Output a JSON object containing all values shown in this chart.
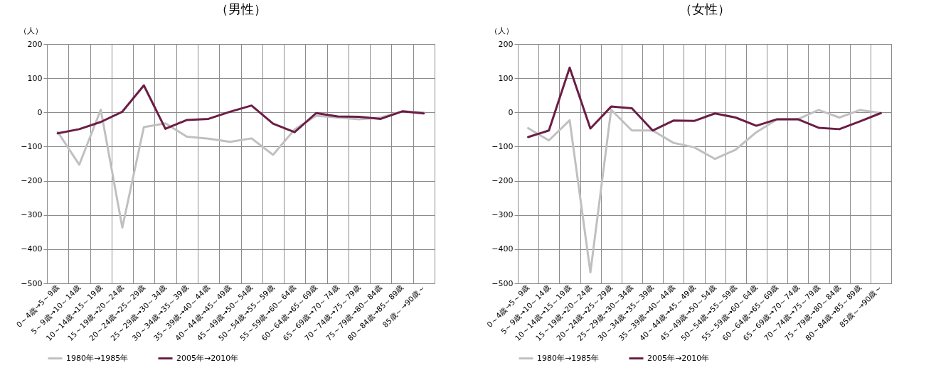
{
  "chart_data": [
    {
      "type": "line",
      "title": "（男性）",
      "ylabel": "（人）",
      "categories": [
        "0～4歳→5～9歳",
        "5～9歳→10～14歳",
        "10～14歳→15～19歳",
        "15～19歳→20～24歳",
        "20～24歳→25～29歳",
        "25～29歳→30～34歳",
        "30～34歳→35～39歳",
        "35～39歳→40～44歳",
        "40～44歳→45～49歳",
        "45～49歳→50～54歳",
        "50～54歳→55～59歳",
        "55～59歳→60～64歳",
        "60～64歳→65～69歳",
        "65～69歳→70～74歳",
        "70～74歳→75～79歳",
        "75～79歳→80～84歳",
        "80～84歳→85～89歳",
        "85歳～→90歳～"
      ],
      "series": [
        {
          "name": "1980年→1985年",
          "color": "#c0c0c0",
          "values": [
            -57,
            -153,
            8,
            -337,
            -43,
            -32,
            -71,
            -77,
            -86,
            -76,
            -124,
            -50,
            -10,
            -15,
            -20,
            -15,
            3,
            0
          ]
        },
        {
          "name": "2005年→2010年",
          "color": "#6b1d45",
          "values": [
            -61,
            -49,
            -28,
            2,
            79,
            -48,
            -22,
            -19,
            2,
            20,
            -33,
            -58,
            -2,
            -12,
            -13,
            -19,
            3,
            -3
          ]
        }
      ],
      "ylim": [
        -500,
        200
      ],
      "yticks": [
        -500,
        -400,
        -300,
        -200,
        -100,
        0,
        100,
        200
      ],
      "grid": true,
      "legend": "bottom"
    },
    {
      "type": "line",
      "title": "（女性）",
      "ylabel": "（人）",
      "categories": [
        "0～4歳→5～9歳",
        "5～9歳→10～14歳",
        "10～14歳→15～19歳",
        "15～19歳→20～24歳",
        "20～24歳→25～29歳",
        "25～29歳→30～34歳",
        "30～34歳→35～39歳",
        "35～39歳→40～44歳",
        "40～44歳→45～49歳",
        "45～49歳→50～54歳",
        "50～54歳→55～59歳",
        "55～59歳→60～64歳",
        "60～64歳→65～69歳",
        "65～69歳→70～74歳",
        "70～74歳→75～79歳",
        "75～79歳→80～84歳",
        "80～84歳→85～89歳",
        "85歳～→90歳～"
      ],
      "series": [
        {
          "name": "1980年→1985年",
          "color": "#c0c0c0",
          "values": [
            -46,
            -82,
            -23,
            -468,
            8,
            -53,
            -53,
            -89,
            -102,
            -136,
            -109,
            -58,
            -20,
            -20,
            7,
            -15,
            7,
            -2
          ]
        },
        {
          "name": "2005年→2010年",
          "color": "#6b1d45",
          "values": [
            -72,
            -53,
            131,
            -47,
            17,
            12,
            -53,
            -24,
            -25,
            -3,
            -15,
            -39,
            -20,
            -20,
            -45,
            -49,
            -26,
            -2
          ]
        }
      ],
      "ylim": [
        -500,
        200
      ],
      "yticks": [
        -500,
        -400,
        -300,
        -200,
        -100,
        0,
        100,
        200
      ],
      "grid": true,
      "legend": "bottom"
    }
  ]
}
